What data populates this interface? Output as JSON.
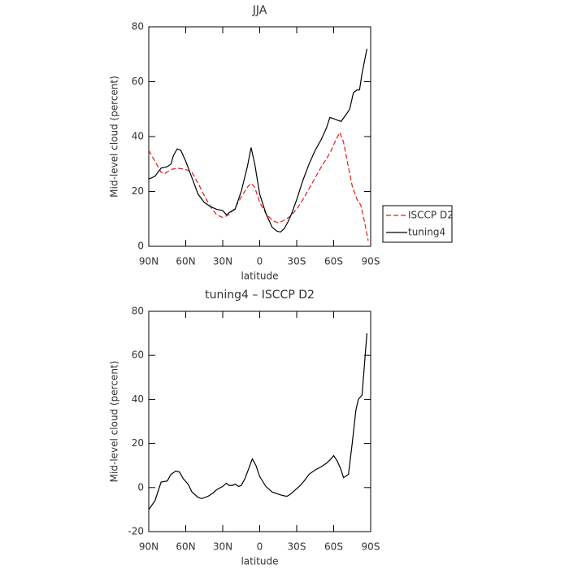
{
  "chart_data": [
    {
      "type": "line",
      "title": "JJA",
      "xlabel": "latitude",
      "ylabel": "Mid-level cloud (percent)",
      "xlim": [
        90,
        -90
      ],
      "ylim": [
        0,
        80
      ],
      "xticks": [
        {
          "value": 90,
          "label": "90N"
        },
        {
          "value": 60,
          "label": "60N"
        },
        {
          "value": 30,
          "label": "30N"
        },
        0,
        {
          "value": -30,
          "label": "30S"
        },
        {
          "value": -60,
          "label": "60S"
        },
        {
          "value": -90,
          "label": "90S"
        }
      ],
      "yticks": [
        0,
        20,
        40,
        60,
        80
      ],
      "legend": "right",
      "series": [
        {
          "name": "ISCCP D2",
          "color": "#e41a1c",
          "dash": true,
          "x": [
            90,
            85,
            80,
            77,
            72,
            67,
            60,
            55,
            50,
            45,
            40,
            35,
            30,
            25,
            20,
            15,
            10,
            7,
            4,
            0,
            -5,
            -10,
            -15,
            -20,
            -25,
            -30,
            -35,
            -40,
            -45,
            -50,
            -55,
            -58,
            -62,
            -65,
            -68,
            -71,
            -75,
            -79,
            -82,
            -85,
            -88
          ],
          "values": [
            35,
            31,
            27,
            26.5,
            28,
            28.5,
            28,
            27,
            23,
            18.5,
            14.5,
            11.5,
            10.5,
            11.5,
            14,
            18,
            21.5,
            23,
            21.5,
            16,
            12,
            9.5,
            8.5,
            9.5,
            11,
            13.5,
            17,
            21,
            25,
            29,
            32.5,
            35,
            39,
            41.5,
            38,
            31,
            22,
            17,
            15,
            9,
            2
          ]
        },
        {
          "name": "tuning4",
          "color": "#000000",
          "dash": false,
          "x": [
            90,
            85,
            80,
            75,
            72,
            70,
            67,
            64,
            60,
            55,
            50,
            45,
            40,
            35,
            30,
            27,
            24,
            20,
            15,
            10,
            7,
            4,
            0,
            -5,
            -10,
            -14,
            -17,
            -20,
            -23,
            -26,
            -30,
            -35,
            -40,
            -45,
            -50,
            -54,
            -57,
            -60,
            -63,
            -66,
            -70,
            -73,
            -76,
            -79,
            -81,
            -83,
            -87
          ],
          "values": [
            24.5,
            25.5,
            28.5,
            29,
            30,
            33,
            35.5,
            35,
            31,
            25,
            19,
            16,
            14.5,
            13.5,
            13,
            11.5,
            12.5,
            13.5,
            20,
            29,
            36,
            30,
            19,
            12,
            7,
            5.5,
            5.2,
            6.5,
            9,
            12,
            17,
            24,
            30,
            35,
            39,
            43,
            47,
            46.5,
            46,
            45.5,
            48,
            50,
            56,
            57,
            57,
            63,
            72
          ]
        }
      ]
    },
    {
      "type": "line",
      "title": "tuning4 – ISCCP D2",
      "xlabel": "latitude",
      "ylabel": "Mid-level cloud (percent)",
      "xlim": [
        90,
        -90
      ],
      "ylim": [
        -20,
        80
      ],
      "xticks": [
        {
          "value": 90,
          "label": "90N"
        },
        {
          "value": 60,
          "label": "60N"
        },
        {
          "value": 30,
          "label": "30N"
        },
        0,
        {
          "value": -30,
          "label": "30S"
        },
        {
          "value": -60,
          "label": "60S"
        },
        {
          "value": -90,
          "label": "90S"
        }
      ],
      "yticks": [
        -20,
        0,
        20,
        40,
        60,
        80
      ],
      "series": [
        {
          "name": "tuning4 – ISCCP D2",
          "color": "#000000",
          "dash": false,
          "x": [
            90,
            85,
            82,
            80,
            75,
            72,
            68,
            65,
            62,
            58,
            55,
            50,
            47,
            42,
            38,
            35,
            30,
            27,
            25,
            22,
            20,
            17,
            15,
            12,
            8,
            6,
            3,
            0,
            -5,
            -10,
            -15,
            -18,
            -22,
            -25,
            -30,
            -33,
            -36,
            -40,
            -45,
            -50,
            -54,
            -57,
            -60,
            -63,
            -66,
            -68,
            -72,
            -75,
            -78,
            -80,
            -83,
            -87
          ],
          "values": [
            -10,
            -6,
            -1,
            2.5,
            3,
            6,
            7.5,
            7,
            4,
            1.5,
            -2,
            -4.5,
            -5,
            -4,
            -2.5,
            -1,
            0.5,
            2,
            1,
            1,
            1.5,
            0.5,
            1,
            4,
            10,
            13,
            10,
            5,
            0.5,
            -2,
            -3,
            -3.5,
            -4,
            -3,
            -0.5,
            1,
            3,
            6,
            8,
            9.5,
            11,
            12.5,
            14.5,
            12,
            8,
            4.5,
            6,
            20,
            35,
            40,
            42,
            70
          ]
        }
      ]
    }
  ]
}
